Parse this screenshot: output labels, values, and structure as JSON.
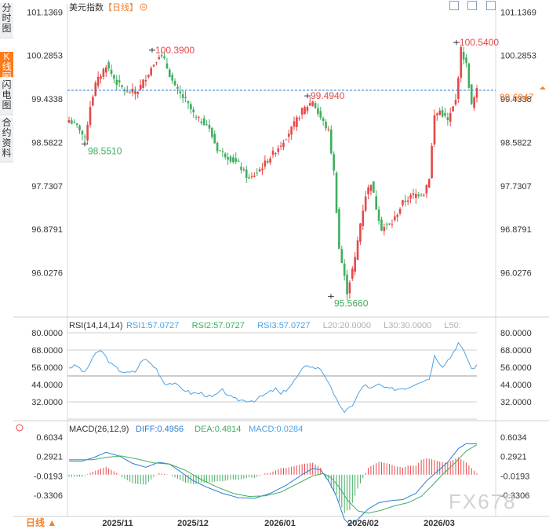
{
  "side_tabs": [
    {
      "label": "分时图",
      "active": false
    },
    {
      "label": "K线图",
      "active": true
    },
    {
      "label": "闪电图",
      "active": false
    },
    {
      "label": "合约资料",
      "active": false
    }
  ],
  "header": {
    "symbol": "美元指数",
    "period_tag": "【日线】",
    "collapse_icon": "circle-minus-icon"
  },
  "toolbar_icons": [
    "expand-icon",
    "shrink-icon",
    "fullscreen-icon"
  ],
  "bottom": {
    "period": "日线 ▲"
  },
  "watermark": "FX678",
  "colors": {
    "up": "#e64848",
    "down": "#3fae5e",
    "accent": "#f3802e",
    "line_blue": "#2b7cd3",
    "rsi": "#4aa3e8",
    "diff": "#2b7cd3",
    "dea": "#3fae5e"
  },
  "chart_data": [
    {
      "type": "candlestick",
      "title": "美元指数【日线】",
      "x_tick_labels": [
        "2025/11",
        "2025/12",
        "2026/01",
        "2026/02",
        "2026/03"
      ],
      "y_tick_labels": [
        "101.1369",
        "100.2853",
        "99.4338",
        "98.5822",
        "97.7307",
        "96.8791",
        "96.0276"
      ],
      "ylim": [
        95.25,
        101.25
      ],
      "current_price": "99.6047",
      "annotations": [
        {
          "label": "98.5510",
          "value": 98.551,
          "type": "low"
        },
        {
          "label": "100.3900",
          "value": 100.39,
          "type": "high"
        },
        {
          "label": "99.4940",
          "value": 99.494,
          "type": "high"
        },
        {
          "label": "95.5660",
          "value": 95.566,
          "type": "low"
        },
        {
          "label": "100.5400",
          "value": 100.54,
          "type": "high"
        }
      ],
      "key_closes": [
        [
          0,
          99.02
        ],
        [
          4,
          98.85
        ],
        [
          6,
          98.63
        ],
        [
          8,
          99.3
        ],
        [
          10,
          99.72
        ],
        [
          14,
          100.1
        ],
        [
          18,
          99.75
        ],
        [
          22,
          99.55
        ],
        [
          26,
          99.6
        ],
        [
          30,
          99.95
        ],
        [
          34,
          100.3
        ],
        [
          36,
          100.18
        ],
        [
          40,
          99.65
        ],
        [
          44,
          99.4
        ],
        [
          48,
          99.05
        ],
        [
          52,
          98.95
        ],
        [
          56,
          98.45
        ],
        [
          60,
          98.3
        ],
        [
          64,
          98.15
        ],
        [
          68,
          97.85
        ],
        [
          72,
          98.05
        ],
        [
          76,
          98.3
        ],
        [
          80,
          98.55
        ],
        [
          84,
          98.85
        ],
        [
          88,
          99.2
        ],
        [
          92,
          99.4
        ],
        [
          94,
          99.15
        ],
        [
          98,
          98.8
        ],
        [
          100,
          98.0
        ],
        [
          102,
          96.5
        ],
        [
          105,
          95.65
        ],
        [
          108,
          96.3
        ],
        [
          110,
          97.0
        ],
        [
          112,
          97.55
        ],
        [
          114,
          97.8
        ],
        [
          116,
          97.3
        ],
        [
          118,
          96.9
        ],
        [
          122,
          97.0
        ],
        [
          126,
          97.4
        ],
        [
          130,
          97.55
        ],
        [
          134,
          97.6
        ],
        [
          136,
          97.9
        ],
        [
          138,
          99.1
        ],
        [
          140,
          99.2
        ],
        [
          143,
          99.0
        ],
        [
          146,
          99.4
        ],
        [
          148,
          100.4
        ],
        [
          150,
          100.1
        ],
        [
          152,
          99.3
        ],
        [
          154,
          99.6
        ]
      ]
    },
    {
      "type": "line",
      "title": "RSI(14,14,14)",
      "legend": [
        {
          "label": "RSI1:57.0727",
          "color": "#4aa3e8"
        },
        {
          "label": "RSI2:57.0727",
          "color": "#3fae5e"
        },
        {
          "label": "RSI3:57.0727",
          "color": "#4aa3e8"
        },
        {
          "label": "L20:20.0000",
          "color": "#b0b0b0"
        },
        {
          "label": "L30:30.0000",
          "color": "#b0b0b0"
        },
        {
          "label": "L50:",
          "color": "#b0b0b0"
        }
      ],
      "y_tick_labels": [
        "80.0000",
        "68.0000",
        "56.0000",
        "44.0000",
        "32.0000"
      ],
      "ylim": [
        21,
        84
      ],
      "ref_lines": [
        80,
        68,
        50,
        32,
        20
      ],
      "key_values": [
        [
          0,
          56
        ],
        [
          3,
          57
        ],
        [
          6,
          52
        ],
        [
          9,
          63
        ],
        [
          12,
          68
        ],
        [
          14,
          63
        ],
        [
          16,
          58
        ],
        [
          19,
          54
        ],
        [
          22,
          52
        ],
        [
          25,
          53
        ],
        [
          28,
          62
        ],
        [
          30,
          60
        ],
        [
          33,
          55
        ],
        [
          36,
          45
        ],
        [
          39,
          45
        ],
        [
          42,
          42
        ],
        [
          46,
          38
        ],
        [
          50,
          38
        ],
        [
          54,
          35
        ],
        [
          58,
          40
        ],
        [
          62,
          34
        ],
        [
          66,
          33
        ],
        [
          70,
          33
        ],
        [
          74,
          37
        ],
        [
          78,
          41
        ],
        [
          80,
          37
        ],
        [
          84,
          44
        ],
        [
          88,
          54
        ],
        [
          90,
          58
        ],
        [
          92,
          56
        ],
        [
          95,
          55
        ],
        [
          98,
          46
        ],
        [
          100,
          36
        ],
        [
          103,
          28
        ],
        [
          104,
          24
        ],
        [
          107,
          30
        ],
        [
          110,
          40
        ],
        [
          112,
          44
        ],
        [
          114,
          41
        ],
        [
          117,
          44
        ],
        [
          120,
          41
        ],
        [
          124,
          41
        ],
        [
          128,
          42
        ],
        [
          132,
          46
        ],
        [
          136,
          48
        ],
        [
          138,
          64
        ],
        [
          141,
          57
        ],
        [
          144,
          63
        ],
        [
          147,
          73
        ],
        [
          150,
          64
        ],
        [
          152,
          55
        ],
        [
          154,
          57
        ]
      ]
    },
    {
      "type": "bar+line",
      "title": "MACD(26,12,9)",
      "legend": [
        {
          "label": "DIFF:0.4956",
          "color": "#2b7cd3"
        },
        {
          "label": "DEA:0.4814",
          "color": "#3fae5e"
        },
        {
          "label": "MACD:0.0284",
          "color": "#4aa3e8"
        }
      ],
      "y_tick_labels": [
        "0.6034",
        "0.2921",
        "-0.0193",
        "-0.3306"
      ],
      "ylim": [
        -0.95,
        0.75
      ],
      "diff_keys": [
        [
          0,
          0.22
        ],
        [
          5,
          0.22
        ],
        [
          9,
          0.27
        ],
        [
          14,
          0.36
        ],
        [
          19,
          0.3
        ],
        [
          24,
          0.18
        ],
        [
          29,
          0.12
        ],
        [
          34,
          0.2
        ],
        [
          38,
          0.17
        ],
        [
          42,
          0.05
        ],
        [
          47,
          -0.1
        ],
        [
          52,
          -0.2
        ],
        [
          58,
          -0.3
        ],
        [
          64,
          -0.37
        ],
        [
          70,
          -0.38
        ],
        [
          76,
          -0.3
        ],
        [
          82,
          -0.17
        ],
        [
          88,
          0.0
        ],
        [
          92,
          0.1
        ],
        [
          95,
          0.08
        ],
        [
          98,
          -0.1
        ],
        [
          101,
          -0.35
        ],
        [
          104,
          -0.72
        ],
        [
          106,
          -0.8
        ],
        [
          109,
          -0.72
        ],
        [
          113,
          -0.55
        ],
        [
          117,
          -0.45
        ],
        [
          121,
          -0.42
        ],
        [
          126,
          -0.4
        ],
        [
          131,
          -0.3
        ],
        [
          135,
          -0.1
        ],
        [
          139,
          0.05
        ],
        [
          143,
          0.2
        ],
        [
          147,
          0.42
        ],
        [
          150,
          0.5
        ],
        [
          154,
          0.4956
        ]
      ],
      "dea_keys": [
        [
          0,
          0.24
        ],
        [
          9,
          0.24
        ],
        [
          14,
          0.28
        ],
        [
          20,
          0.3
        ],
        [
          26,
          0.25
        ],
        [
          32,
          0.19
        ],
        [
          38,
          0.17
        ],
        [
          44,
          0.07
        ],
        [
          50,
          -0.08
        ],
        [
          56,
          -0.2
        ],
        [
          62,
          -0.3
        ],
        [
          68,
          -0.35
        ],
        [
          74,
          -0.34
        ],
        [
          80,
          -0.28
        ],
        [
          86,
          -0.15
        ],
        [
          92,
          -0.02
        ],
        [
          96,
          0.02
        ],
        [
          99,
          -0.05
        ],
        [
          102,
          -0.2
        ],
        [
          105,
          -0.4
        ],
        [
          109,
          -0.58
        ],
        [
          113,
          -0.62
        ],
        [
          118,
          -0.57
        ],
        [
          123,
          -0.5
        ],
        [
          128,
          -0.45
        ],
        [
          133,
          -0.35
        ],
        [
          137,
          -0.18
        ],
        [
          141,
          0.0
        ],
        [
          146,
          0.2
        ],
        [
          150,
          0.38
        ],
        [
          154,
          0.4814
        ]
      ],
      "hist_scale": 0.8
    }
  ]
}
